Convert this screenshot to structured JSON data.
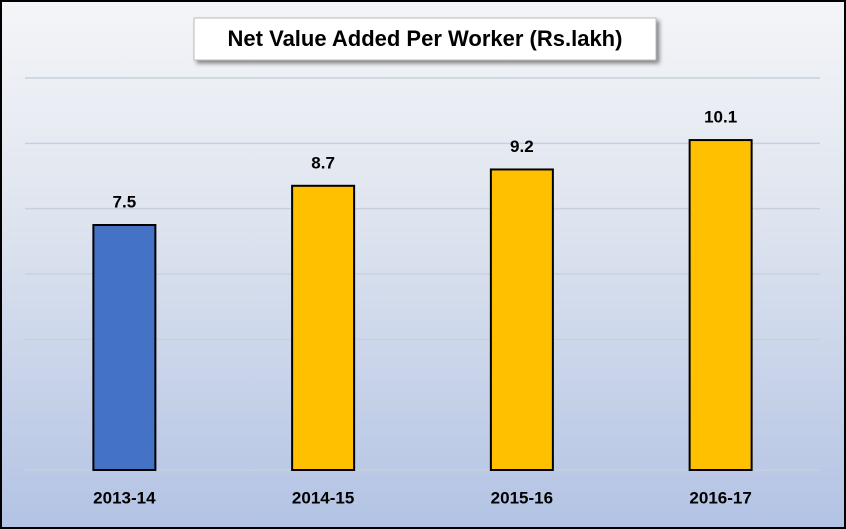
{
  "chart_data": {
    "type": "bar",
    "title": "Net Value Added Per Worker (Rs.lakh)",
    "categories": [
      "2013-14",
      "2014-15",
      "2015-16",
      "2016-17"
    ],
    "values": [
      7.5,
      8.7,
      9.2,
      10.1
    ],
    "colors": [
      "#4472c4",
      "#ffc000",
      "#ffc000",
      "#ffc000"
    ],
    "ylim": [
      0,
      12
    ],
    "yticks": [
      0,
      2,
      4,
      6,
      8,
      10,
      12
    ],
    "grid": true,
    "data_labels": true
  }
}
